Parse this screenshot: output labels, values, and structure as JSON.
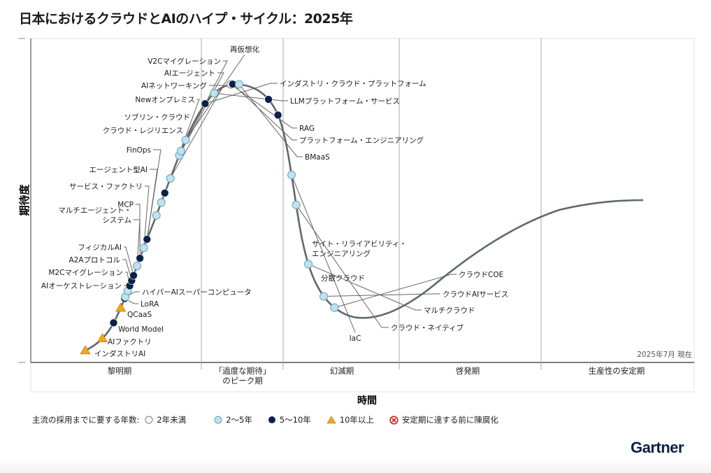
{
  "chart_data": {
    "type": "scatter",
    "title": "日本におけるクラウドとAIのハイプ・サイクル：2025年",
    "xlabel": "時間",
    "ylabel": "期待度",
    "as_of": "2025年7月 現在",
    "phases": [
      "黎明期",
      "「過度な期待」\nのピーク期",
      "幻滅期",
      "啓発期",
      "生産性の安定期"
    ],
    "legend": {
      "lead": "主流の採用までに要する年数:",
      "items": [
        {
          "key": "lt2",
          "label": "2年未満",
          "symbol": "circle-white"
        },
        {
          "key": "2to5",
          "label": "2〜5年",
          "symbol": "circle-light-blue"
        },
        {
          "key": "5to10",
          "label": "5〜10年",
          "symbol": "circle-dark-navy"
        },
        {
          "key": "gt10",
          "label": "10年以上",
          "symbol": "triangle-orange"
        },
        {
          "key": "obsolete",
          "label": "安定期に達する前に陳腐化",
          "symbol": "x-circle-red"
        }
      ]
    },
    "colors": {
      "lt2": "#ffffff",
      "2to5": "#bde3f3",
      "5to10": "#0b2147",
      "gt10": "#f2a71b",
      "obsolete": "#d0201c",
      "curve": "#5d6b6b"
    },
    "points": [
      {
        "name": "インダストリAI",
        "t": 0.0,
        "category": "gt10"
      },
      {
        "name": "AIファクトリ",
        "t": 0.023,
        "category": "gt10"
      },
      {
        "name": "World Model",
        "t": 0.044,
        "category": "5to10"
      },
      {
        "name": "QCaaS",
        "t": 0.062,
        "category": "gt10"
      },
      {
        "name": "LoRA",
        "t": 0.073,
        "category": "5to10"
      },
      {
        "name": "ハイパーAIスーパーコンピュータ",
        "t": 0.075,
        "category": "2to5"
      },
      {
        "name": "AIオーケストレーション",
        "t": 0.082,
        "category": "2to5"
      },
      {
        "name": "M2Cマイグレーション",
        "t": 0.088,
        "category": "5to10"
      },
      {
        "name": "A2Aプロトコル",
        "t": 0.094,
        "category": "5to10"
      },
      {
        "name": "フィジカルAI",
        "t": 0.1,
        "category": "5to10"
      },
      {
        "name": "マルチエージェント・\nシステム",
        "t": 0.111,
        "category": "2to5"
      },
      {
        "name": "MCP",
        "t": 0.12,
        "category": "5to10"
      },
      {
        "name": "サービス・ファクトリ",
        "t": 0.132,
        "category": "2to5"
      },
      {
        "name": "エージェント型AI",
        "t": 0.142,
        "category": "5to10"
      },
      {
        "name": "FinOps",
        "t": 0.142,
        "category": "5to10",
        "hidden_marker": true
      },
      {
        "name": "クラウド・レジリエンス",
        "t": 0.17,
        "category": "2to5"
      },
      {
        "name": "ソブリン・クラウド",
        "t": 0.185,
        "category": "2to5"
      },
      {
        "name": "Newオンプレミス",
        "t": 0.196,
        "category": "5to10"
      },
      {
        "name": "AIネットワーキング",
        "t": 0.213,
        "category": "2to5"
      },
      {
        "name": "AIエージェント",
        "t": 0.24,
        "category": "2to5"
      },
      {
        "name": "V2Cマイグレーション",
        "t": 0.245,
        "category": "2to5"
      },
      {
        "name": "再仮想化",
        "t": 0.258,
        "category": "2to5"
      },
      {
        "name": "インダストリ・クラウド・プラットフォーム",
        "t": 0.303,
        "category": "5to10"
      },
      {
        "name": "LLMプラットフォーム・サービス",
        "t": 0.318,
        "category": "2to5"
      },
      {
        "name": "RAG",
        "t": 0.339,
        "category": "lt2"
      },
      {
        "name": "プラットフォーム・エンジニアリング",
        "t": 0.341,
        "category": "5to10"
      },
      {
        "name": "BMaaS",
        "t": 0.348,
        "category": "2to5"
      },
      {
        "name": "サイト・リライアビリティ・\nエンジニアリング",
        "t": 0.385,
        "category": "5to10"
      },
      {
        "name": "分散クラウド",
        "t": 0.405,
        "category": "5to10"
      },
      {
        "name": "IaC",
        "t": 0.472,
        "category": "2to5"
      },
      {
        "name": "クラウド・ネイティブ",
        "t": 0.505,
        "category": "2to5"
      },
      {
        "name": "マルチクラウド",
        "t": 0.571,
        "category": "2to5"
      },
      {
        "name": "クラウドAIサービス",
        "t": 0.61,
        "category": "2to5"
      },
      {
        "name": "クラウドCOE",
        "t": 0.627,
        "category": "2to5"
      }
    ]
  },
  "brand": {
    "logo_text": "Gartner",
    "logo_mark": "."
  }
}
